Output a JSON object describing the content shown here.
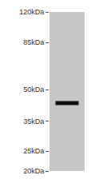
{
  "chart_data": {
    "type": "western_blot",
    "values": [
      43
    ],
    "color": "#111111",
    "log": "y",
    "ylim": [
      20,
      120
    ],
    "yticks": [
      {
        "value": 120,
        "label": "120kDa"
      },
      {
        "value": 85,
        "label": "85kDa"
      },
      {
        "value": 50,
        "label": "50kDa"
      },
      {
        "value": 35,
        "label": "35kDa"
      },
      {
        "value": 25,
        "label": "25kDa"
      },
      {
        "value": 20,
        "label": "20kDa"
      }
    ],
    "grid": false,
    "tick_labels": "y"
  }
}
